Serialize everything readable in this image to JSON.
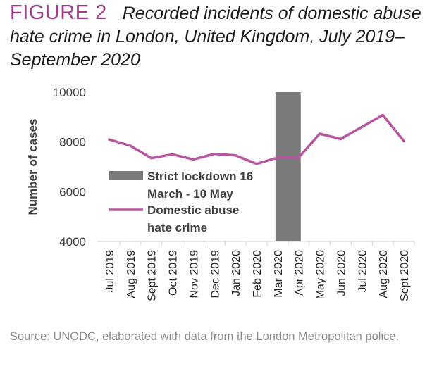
{
  "figure": {
    "label": "FIGURE 2",
    "title_line1": "Recorded incidents of domestic abuse",
    "title_line2": "hate crime in London, United Kingdom, July 2019–",
    "title_line3": "September 2020"
  },
  "source": "Source: UNODC, elaborated with data from the London Metropolitan police.",
  "colors": {
    "line": "#b8559f",
    "bar": "#7a7a7a",
    "figure_label": "#a33a8a"
  },
  "chart_data": {
    "type": "line",
    "categories": [
      "Jul 2019",
      "Aug 2019",
      "Sept 2019",
      "Oct 2019",
      "Nov 2019",
      "Dec 2019",
      "Jan 2020",
      "Feb 2020",
      "Mar 2020",
      "Apr 2020",
      "May 2020",
      "Jun 2020",
      "Jul 2020",
      "Aug 2020",
      "Sept 2020"
    ],
    "series": [
      {
        "name": "Domestic abuse hate crime",
        "values": [
          8100,
          7850,
          7350,
          7500,
          7300,
          7520,
          7460,
          7120,
          7370,
          7370,
          8330,
          8120,
          8600,
          9080,
          8040
        ]
      }
    ],
    "highlight": {
      "name": "Strict lockdown 16 March - 10 May",
      "start": "Mar 2020",
      "end": "Apr 2020"
    },
    "legend": [
      {
        "label_line1": "Strict lockdown 16",
        "label_line2": "March - 10 May"
      },
      {
        "label_line1": "Domestic abuse",
        "label_line2": "hate crime"
      }
    ],
    "ylabel": "Number of cases",
    "ylim": [
      4000,
      10000
    ],
    "yticks": [
      "4000",
      "6000",
      "8000",
      "10000"
    ],
    "legend_position": "center-left",
    "grid": false
  }
}
